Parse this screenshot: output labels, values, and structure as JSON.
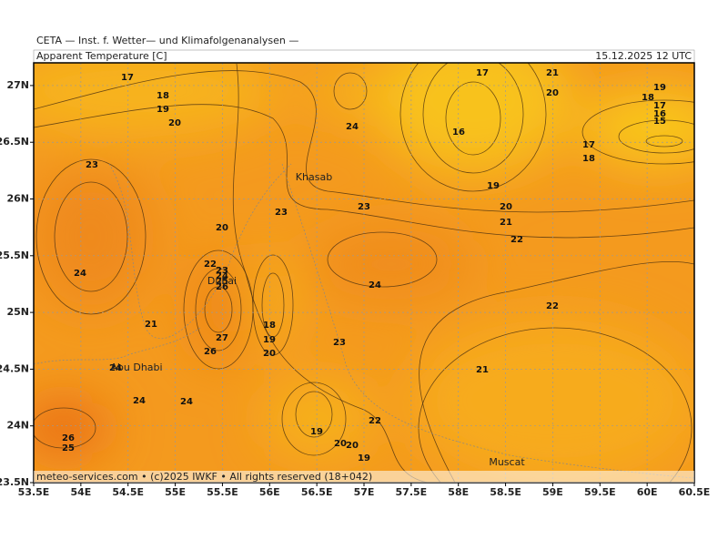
{
  "header": {
    "title": "CETA — Inst. f. Wetter— und Klimafolgenanalysen —",
    "parameter": "Apparent Temperature [C]",
    "valid_time": "15.12.2025 12 UTC"
  },
  "footer": "meteo-services.com • (c)2025 IWKF • All rights reserved (18+042)",
  "places": [
    "Khasab",
    "Dubai",
    "Abu Dhabi",
    "Muscat"
  ],
  "map": {
    "xlim": [
      53.5,
      60.5
    ],
    "ylim": [
      23.5,
      27.2
    ],
    "xticks": [
      {
        "value": 53.5,
        "label": "53.5E"
      },
      {
        "value": 54,
        "label": "54E"
      },
      {
        "value": 54.5,
        "label": "54.5E"
      },
      {
        "value": 55,
        "label": "55E"
      },
      {
        "value": 55.5,
        "label": "55.5E"
      },
      {
        "value": 56,
        "label": "56E"
      },
      {
        "value": 56.5,
        "label": "56.5E"
      },
      {
        "value": 57,
        "label": "57E"
      },
      {
        "value": 57.5,
        "label": "57.5E"
      },
      {
        "value": 58,
        "label": "58E"
      },
      {
        "value": 58.5,
        "label": "58.5E"
      },
      {
        "value": 59,
        "label": "59E"
      },
      {
        "value": 59.5,
        "label": "59.5E"
      },
      {
        "value": 60,
        "label": "60E"
      },
      {
        "value": 60.5,
        "label": "60.5E"
      }
    ],
    "yticks": [
      {
        "value": 23.5,
        "label": "23.5N"
      },
      {
        "value": 24,
        "label": "24N"
      },
      {
        "value": 24.5,
        "label": "24.5N"
      },
      {
        "value": 25,
        "label": "25N"
      },
      {
        "value": 25.5,
        "label": "25.5N"
      },
      {
        "value": 26,
        "label": "26N"
      },
      {
        "value": 26.5,
        "label": "26.5N"
      },
      {
        "value": 27,
        "label": "27N"
      }
    ],
    "grid": true,
    "contour_labels": [
      17,
      18,
      19,
      20,
      23,
      24,
      21,
      24,
      24,
      24,
      26,
      25,
      20,
      22,
      23,
      24,
      25,
      26,
      27,
      26,
      18,
      19,
      20,
      23,
      24,
      23,
      24,
      23,
      19,
      20,
      20,
      19,
      22,
      17,
      16,
      21,
      20,
      19,
      18,
      17,
      16,
      15,
      17,
      18,
      19,
      20,
      21,
      22,
      22,
      21
    ]
  }
}
